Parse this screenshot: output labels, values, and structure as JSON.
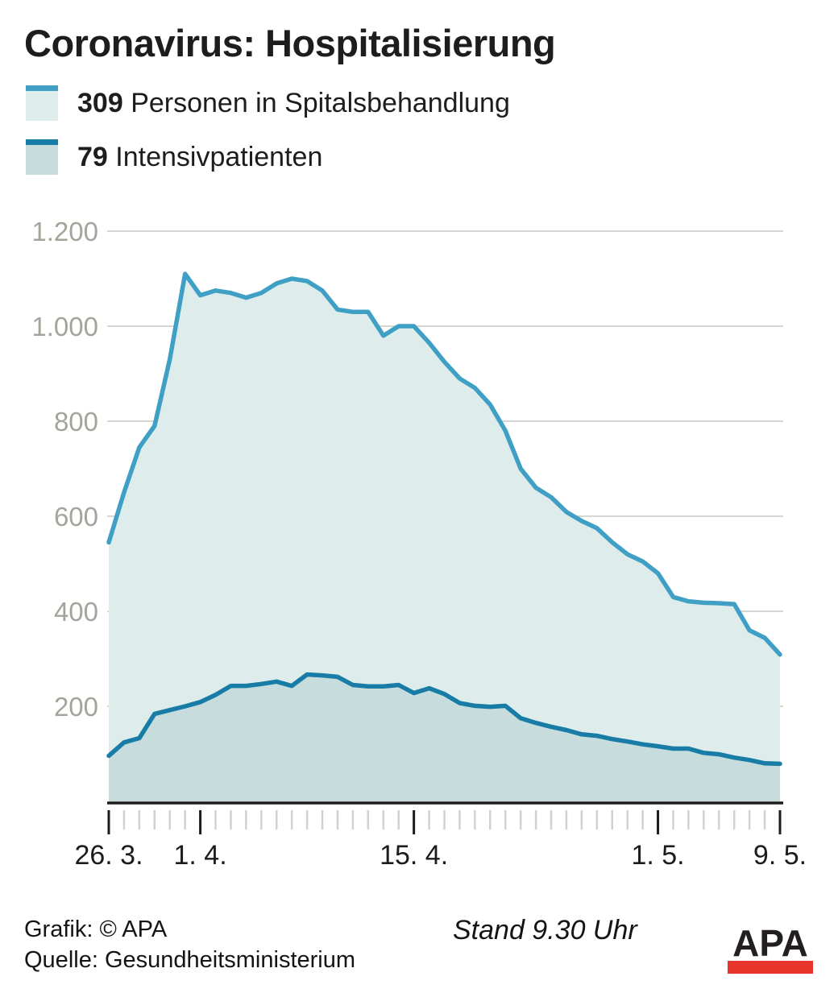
{
  "title": "Coronavirus: Hospitalisierung",
  "legend": {
    "items": [
      {
        "value": "309",
        "label": "Personen in Spitalsbehandlung",
        "swatch_fill": "#deedec",
        "swatch_accent": "#3f9fc5"
      },
      {
        "value": "79",
        "label": "Intensivpatienten",
        "swatch_fill": "#c6dcdd",
        "swatch_accent": "#187ca6"
      }
    ]
  },
  "footer": {
    "credit": "Grafik: © APA",
    "source": "Quelle: Gesundheitsministerium",
    "status": "Stand 9.30 Uhr",
    "logo_text": "APA"
  },
  "chart_data": {
    "type": "area",
    "title": "Coronavirus: Hospitalisierung",
    "x_unit": "Datum (26. 3. bis 9. 5.), 45 Tagespunkte",
    "n_points": 45,
    "ylim": [
      0,
      1200
    ],
    "grid": true,
    "legend_position": "top-left",
    "yticks": [
      {
        "value": 200,
        "label": "200"
      },
      {
        "value": 400,
        "label": "400"
      },
      {
        "value": 600,
        "label": "600"
      },
      {
        "value": 800,
        "label": "800"
      },
      {
        "value": 1000,
        "label": "1.000"
      },
      {
        "value": 1200,
        "label": "1.200"
      }
    ],
    "major_ticks": [
      {
        "day": 0,
        "label": "26. 3."
      },
      {
        "day": 6,
        "label": "1. 4."
      },
      {
        "day": 20,
        "label": "15. 4."
      },
      {
        "day": 36,
        "label": "1. 5."
      },
      {
        "day": 44,
        "label": "9. 5."
      }
    ],
    "series": [
      {
        "name": "Personen in Spitalsbehandlung",
        "current_value": 309,
        "line_color": "#3f9fc5",
        "fill_color": "#deedec",
        "values": [
          545,
          650,
          745,
          790,
          930,
          1110,
          1065,
          1075,
          1070,
          1060,
          1070,
          1090,
          1100,
          1095,
          1075,
          1035,
          1030,
          1030,
          980,
          1000,
          1000,
          965,
          925,
          890,
          870,
          835,
          780,
          700,
          660,
          640,
          609,
          590,
          575,
          545,
          520,
          505,
          480,
          430,
          421,
          418,
          417,
          415,
          360,
          344,
          309
        ]
      },
      {
        "name": "Intensivpatienten",
        "current_value": 79,
        "line_color": "#187ca6",
        "fill_color": "#c6dcdd",
        "values": [
          96,
          124,
          133,
          184,
          192,
          200,
          209,
          224,
          243,
          243,
          247,
          252,
          243,
          267,
          265,
          262,
          245,
          242,
          242,
          245,
          228,
          238,
          226,
          207,
          201,
          199,
          201,
          175,
          165,
          157,
          150,
          141,
          138,
          131,
          126,
          120,
          116,
          111,
          111,
          102,
          99,
          92,
          87,
          80,
          79
        ]
      }
    ],
    "colors": {
      "gridline": "#d7d7d2",
      "axis_line": "#1c1c1c",
      "tick_minor": "#d2d2cc",
      "tick_major": "#1c1c1c",
      "y_label": "#a6a39b",
      "x_label": "#1c1c1c"
    }
  }
}
